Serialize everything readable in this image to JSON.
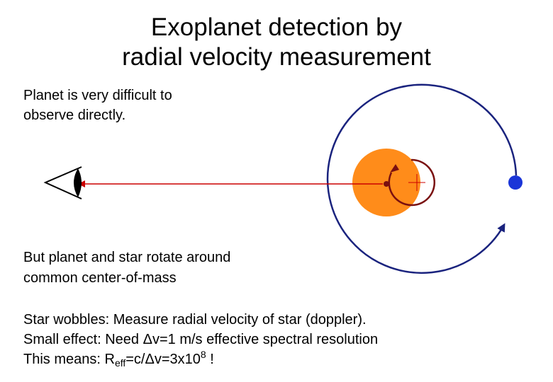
{
  "title": [
    "Exoplanet detection by",
    "radial velocity measurement"
  ],
  "intro": [
    "Planet is very difficult to",
    "observe directly."
  ],
  "note": [
    "But planet and star rotate around",
    "common center-of-mass"
  ],
  "details": {
    "lines": [
      "Star wobbles: Measure radial velocity of star (doppler).",
      "Small effect: Need Δv=1 m/s effective spectral resolution"
    ],
    "last": {
      "prefix": "This means: R",
      "subscript": "eff",
      "middle": "=c/Δv=3x10",
      "superscript": "8",
      "suffix": " !"
    }
  }
}
